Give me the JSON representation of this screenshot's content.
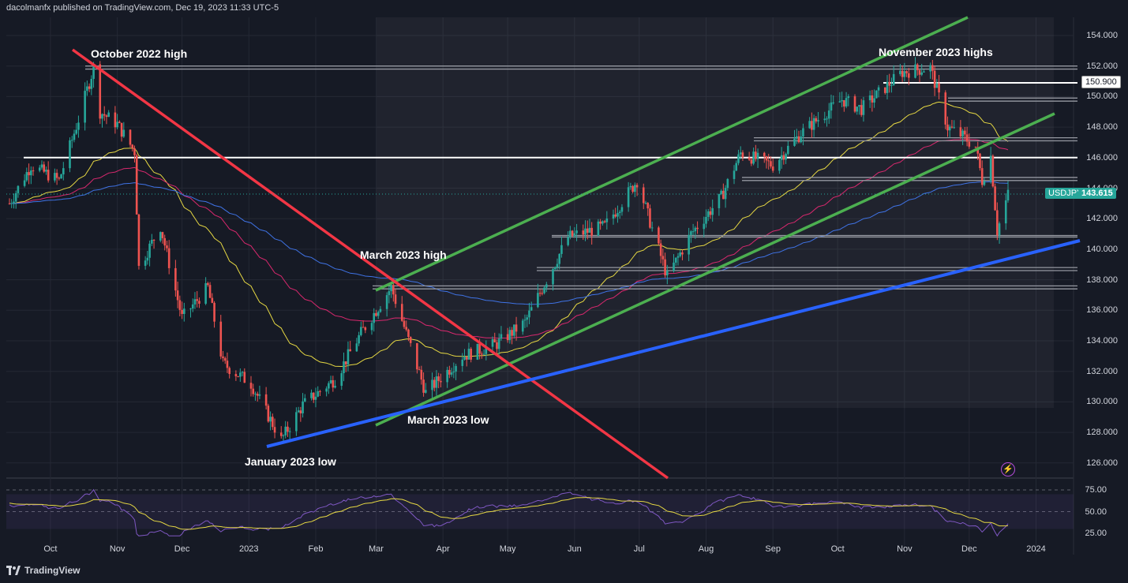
{
  "header": {
    "text": "dacolmanfx published on TradingView.com, Dec 19, 2023 11:33 UTC-5"
  },
  "watermark": {
    "text": "TradingView"
  },
  "annotations": {
    "oct2022_high": "October 2022 high",
    "nov2023_highs": "November 2023 highs",
    "mar2023_high": "March 2023 high",
    "mar2023_low": "March 2023 low",
    "jan2023_low": "January 2023 low"
  },
  "labels": {
    "level": "150.900",
    "symbol": "USDJPY",
    "last_price": "143.615"
  },
  "colors": {
    "background": "#161a25",
    "grid": "#242834",
    "up": "#26a69a",
    "down": "#ef5350",
    "ema50": "#e6d843",
    "ema100": "#d9286e",
    "ema200": "#3f73e6",
    "red_line": "#f23645",
    "green_channel": "#4caf50",
    "blue_support": "#2962ff",
    "level_lines": "#ffffff",
    "oscillator": "#7e57c2",
    "osc_signal": "#e6d843"
  },
  "chart_data": {
    "type": "candlestick",
    "symbol": "USDJPY",
    "x_axis_ticks": [
      "Oct",
      "Nov",
      "Dec",
      "2023",
      "Feb",
      "Mar",
      "Apr",
      "May",
      "Jun",
      "Jul",
      "Aug",
      "Sep",
      "Oct",
      "Nov",
      "Dec",
      "2024"
    ],
    "y_axis_ticks": [
      "154.000",
      "152.000",
      "150.000",
      "148.000",
      "146.000",
      "144.000",
      "142.000",
      "140.000",
      "138.000",
      "136.000",
      "134.000",
      "132.000",
      "130.000",
      "128.000",
      "126.000"
    ],
    "ylim": [
      125.0,
      155.0
    ],
    "last_price": 143.615,
    "key_closes": [
      {
        "date": "2022-10-21",
        "close": 151.9
      },
      {
        "date": "2023-01-16",
        "close": 127.5
      },
      {
        "date": "2023-03-08",
        "close": 137.5
      },
      {
        "date": "2023-03-24",
        "close": 130.6
      },
      {
        "date": "2023-11-13",
        "close": 151.9
      },
      {
        "date": "2023-12-14",
        "close": 141.2
      },
      {
        "date": "2023-12-19",
        "close": 143.6
      }
    ],
    "horizontal_levels": [
      152.0,
      151.8,
      150.9,
      149.9,
      149.7,
      147.3,
      147.1,
      146.0,
      144.7,
      144.5,
      140.9,
      140.8,
      138.8,
      138.6,
      137.6,
      137.4
    ],
    "oscillator_ticks": [
      "75.00",
      "50.00",
      "25.00"
    ],
    "oscillator_range": [
      20,
      85
    ]
  }
}
